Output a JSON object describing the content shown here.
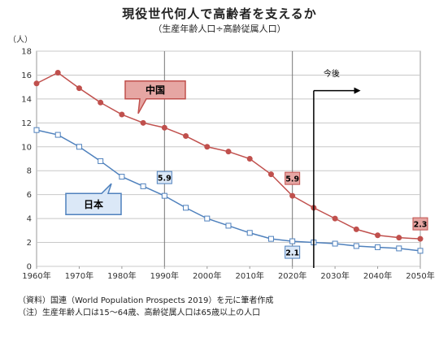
{
  "title": "現役世代何人で高齢者を支えるか",
  "subtitle": "（生産年齢人口÷高齢従属人口）",
  "y_unit": "（人）",
  "notes": {
    "source": "（資料）国連（World Population Prospects 2019）を元に筆者作成",
    "note": "（注）生産年齢人口は15～64歳、高齢従属人口は65歳以上の人口"
  },
  "colors": {
    "china": "#c0504d",
    "china_fill": "#e6a6a3",
    "japan": "#4f81bd",
    "japan_fill": "#dbe8f7"
  },
  "chart_data": {
    "type": "line",
    "title": "現役世代何人で高齢者を支えるか",
    "subtitle": "（生産年齢人口÷高齢従属人口）",
    "ylabel": "（人）",
    "xlim": [
      1960,
      2050
    ],
    "ylim": [
      0,
      18
    ],
    "yticks": [
      0,
      2,
      4,
      6,
      8,
      10,
      12,
      14,
      16,
      18
    ],
    "xticks": [
      "1960年",
      "1970年",
      "1980年",
      "1990年",
      "2000年",
      "2010年",
      "2020年",
      "2030年",
      "2040年",
      "2050年"
    ],
    "x": [
      1960,
      1965,
      1970,
      1975,
      1980,
      1985,
      1990,
      1995,
      2000,
      2005,
      2010,
      2015,
      2020,
      2025,
      2030,
      2035,
      2040,
      2045,
      2050
    ],
    "series": [
      {
        "name": "中国",
        "values": [
          15.3,
          16.2,
          14.9,
          13.7,
          12.7,
          12.0,
          11.6,
          10.9,
          10.0,
          9.6,
          9.0,
          7.7,
          5.9,
          4.9,
          4.0,
          3.1,
          2.6,
          2.4,
          2.3
        ]
      },
      {
        "name": "日本",
        "values": [
          11.4,
          11.0,
          10.0,
          8.8,
          7.5,
          6.7,
          5.9,
          4.9,
          4.0,
          3.4,
          2.8,
          2.3,
          2.1,
          2.0,
          1.9,
          1.7,
          1.6,
          1.5,
          1.3
        ]
      }
    ],
    "annotations": [
      {
        "text": "5.9",
        "x": 1990,
        "series": "日本"
      },
      {
        "text": "5.9",
        "x": 2020,
        "series": "中国"
      },
      {
        "text": "2.1",
        "x": 2020,
        "series": "日本"
      },
      {
        "text": "2.3",
        "x": 2050,
        "series": "中国"
      },
      {
        "text": "今後",
        "x": 2025
      }
    ],
    "reference_lines_x": [
      1990,
      2020
    ],
    "grid": "horizontal"
  }
}
